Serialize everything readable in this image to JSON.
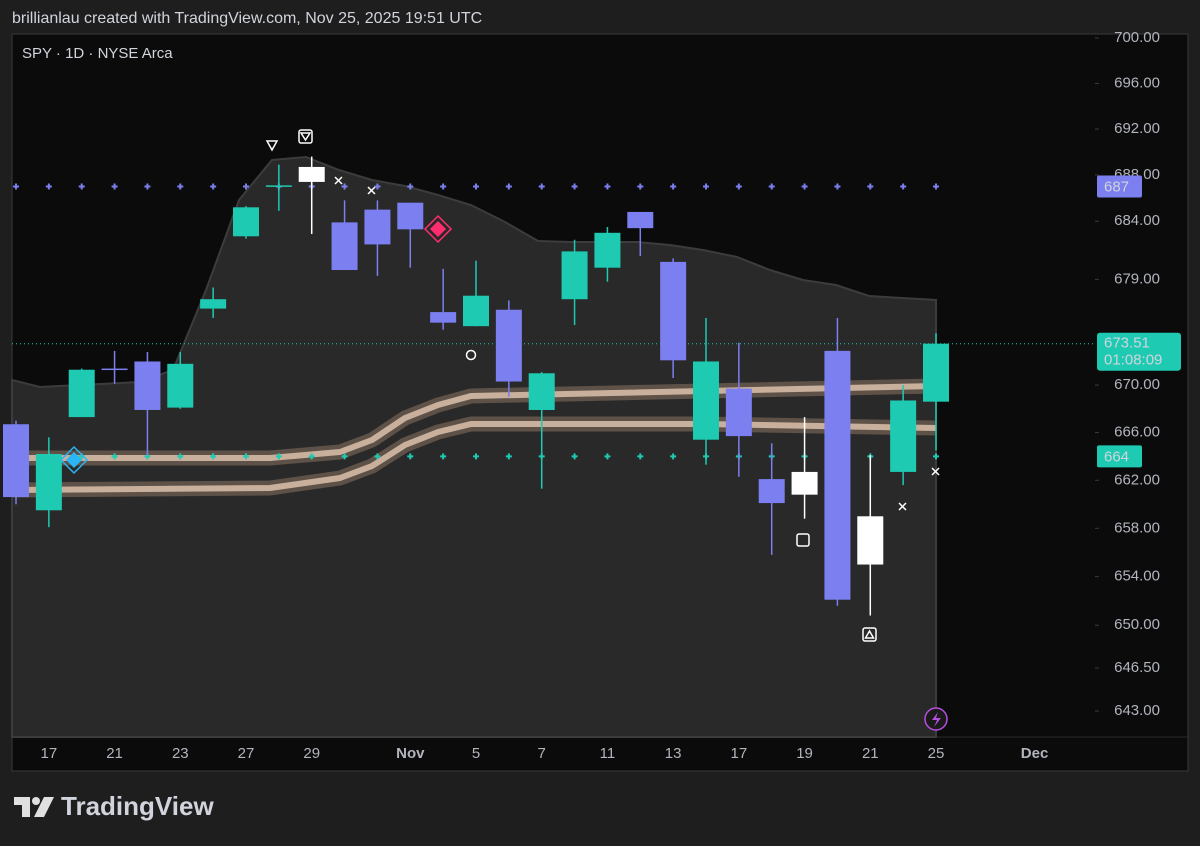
{
  "header": {
    "credit": "brillianlau created with TradingView.com, Nov 25, 2025 19:51 UTC"
  },
  "chart_data": {
    "type": "candlestick",
    "title": "SPY · 1D · NYSE Arca",
    "categories": [
      null,
      "17",
      null,
      "21",
      null,
      "23",
      null,
      "27",
      null,
      "29",
      null,
      null,
      "Nov",
      null,
      "5",
      null,
      "7",
      null,
      "11",
      null,
      "13",
      null,
      "17",
      null,
      "19",
      null,
      "21",
      null,
      "25",
      null,
      null,
      "Dec"
    ],
    "open": [
      666.7,
      659.5,
      667.3,
      671.3,
      672.0,
      668.1,
      676.5,
      682.7,
      687.1,
      688.7,
      683.9,
      685.0,
      685.6,
      676.2,
      675.0,
      676.4,
      667.9,
      677.3,
      680.0,
      684.8,
      680.5,
      665.4,
      669.7,
      662.1,
      660.8,
      672.9,
      655.0,
      662.7,
      668.6,
      null,
      null,
      null
    ],
    "high": [
      667.0,
      665.6,
      671.4,
      672.9,
      672.8,
      672.8,
      678.3,
      685.3,
      688.9,
      689.6,
      685.8,
      685.8,
      685.6,
      679.9,
      680.6,
      677.2,
      671.1,
      682.4,
      683.5,
      684.8,
      680.8,
      675.7,
      673.6,
      665.1,
      667.3,
      675.7,
      664.1,
      670.0,
      674.4,
      null,
      null,
      null
    ],
    "low": [
      660.0,
      658.1,
      667.3,
      670.1,
      664.1,
      668.0,
      675.7,
      682.5,
      684.9,
      682.9,
      679.8,
      679.3,
      680.0,
      674.7,
      675.0,
      669.0,
      661.3,
      675.1,
      678.8,
      681.0,
      670.6,
      663.3,
      662.3,
      655.8,
      658.8,
      651.6,
      650.8,
      661.6,
      664.5,
      null,
      null,
      null
    ],
    "close": [
      660.6,
      664.2,
      671.3,
      671.4,
      667.9,
      671.8,
      677.3,
      685.2,
      687.0,
      687.4,
      679.8,
      682.0,
      683.3,
      675.3,
      677.6,
      670.3,
      671.0,
      681.4,
      683.0,
      683.4,
      672.1,
      672.0,
      665.7,
      660.1,
      662.7,
      652.1,
      659.0,
      668.7,
      673.51,
      null,
      null,
      null
    ],
    "colors": [
      "#7b7ff0",
      "#1ecbb2",
      "#1ecbb2",
      "#7b7ff0",
      "#7b7ff0",
      "#1ecbb2",
      "#1ecbb2",
      "#1ecbb2",
      "#1ecbb2",
      "#ffffff",
      "#7b7ff0",
      "#7b7ff0",
      "#7b7ff0",
      "#7b7ff0",
      "#1ecbb2",
      "#7b7ff0",
      "#1ecbb2",
      "#1ecbb2",
      "#1ecbb2",
      "#7b7ff0",
      "#7b7ff0",
      "#1ecbb2",
      "#7b7ff0",
      "#7b7ff0",
      "#ffffff",
      "#7b7ff0",
      "#ffffff",
      "#1ecbb2",
      "#1ecbb2",
      null,
      null,
      null
    ],
    "log_scale": true,
    "grid": false,
    "ylim": [
      640.9,
      700.35
    ],
    "yticks": [
      {
        "value": 700,
        "label": "700.00"
      },
      {
        "value": 696,
        "label": "696.00"
      },
      {
        "value": 692,
        "label": "692.00"
      },
      {
        "value": 688,
        "label": "688.00"
      },
      {
        "value": 684,
        "label": "684.00"
      },
      {
        "value": 679,
        "label": "679.00"
      },
      {
        "value": 670,
        "label": "670.00"
      },
      {
        "value": 666,
        "label": "666.00"
      },
      {
        "value": 662,
        "label": "662.00"
      },
      {
        "value": 658,
        "label": "658.00"
      },
      {
        "value": 654,
        "label": "654.00"
      },
      {
        "value": 650,
        "label": "650.00"
      },
      {
        "value": 646.5,
        "label": "646.50"
      },
      {
        "value": 643,
        "label": "643.00"
      }
    ],
    "levels": [
      {
        "value": 687,
        "color": "#7b7ff0"
      },
      {
        "value": 664,
        "color": "#1ecbb2"
      }
    ],
    "countdown": "01:08:09"
  },
  "footer": {
    "brand": "TradingView"
  }
}
